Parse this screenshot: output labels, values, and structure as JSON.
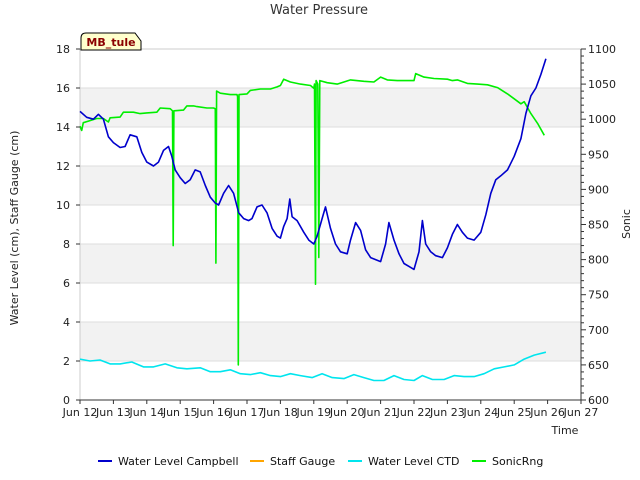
{
  "chart_data": {
    "type": "line",
    "title": "Water Pressure",
    "xlabel": "Time",
    "ylabel_left": "Water Level (cm), Staff Gauge (cm)",
    "ylabel_right": "Sonic",
    "badge": "MB_tule",
    "x_ticks": [
      "Jun 12",
      "Jun 13",
      "Jun 14",
      "Jun 15",
      "Jun 16",
      "Jun 17",
      "Jun 18",
      "Jun 19",
      "Jun 20",
      "Jun 21",
      "Jun 22",
      "Jun 23",
      "Jun 24",
      "Jun 25",
      "Jun 26",
      "Jun 27"
    ],
    "x_tick_days": [
      12,
      13,
      14,
      15,
      16,
      17,
      18,
      19,
      20,
      21,
      22,
      23,
      24,
      25,
      26,
      27
    ],
    "x_range_days": [
      12,
      27
    ],
    "left_range": [
      0,
      18
    ],
    "left_ticks": [
      0,
      2,
      4,
      6,
      8,
      10,
      12,
      14,
      16,
      18
    ],
    "right_range": [
      600,
      1100
    ],
    "right_ticks": [
      600,
      650,
      700,
      750,
      800,
      850,
      900,
      950,
      1000,
      1050,
      1100
    ],
    "grid": "horizontal alternating bands",
    "legend_position": "bottom",
    "series": [
      {
        "name": "Water Level Campbell",
        "color": "#0000cc",
        "axis": "left",
        "points": [
          [
            12.0,
            14.8
          ],
          [
            12.2,
            14.5
          ],
          [
            12.4,
            14.4
          ],
          [
            12.55,
            14.65
          ],
          [
            12.7,
            14.4
          ],
          [
            12.85,
            13.5
          ],
          [
            13.0,
            13.2
          ],
          [
            13.2,
            12.95
          ],
          [
            13.35,
            13.0
          ],
          [
            13.5,
            13.6
          ],
          [
            13.7,
            13.5
          ],
          [
            13.85,
            12.7
          ],
          [
            14.0,
            12.2
          ],
          [
            14.2,
            12.0
          ],
          [
            14.35,
            12.2
          ],
          [
            14.5,
            12.8
          ],
          [
            14.65,
            13.0
          ],
          [
            14.75,
            12.5
          ],
          [
            14.85,
            11.8
          ],
          [
            15.0,
            11.4
          ],
          [
            15.15,
            11.1
          ],
          [
            15.3,
            11.3
          ],
          [
            15.45,
            11.8
          ],
          [
            15.6,
            11.7
          ],
          [
            15.75,
            11.0
          ],
          [
            15.9,
            10.4
          ],
          [
            16.05,
            10.1
          ],
          [
            16.15,
            10.0
          ],
          [
            16.3,
            10.6
          ],
          [
            16.45,
            11.0
          ],
          [
            16.6,
            10.6
          ],
          [
            16.75,
            9.6
          ],
          [
            16.9,
            9.3
          ],
          [
            17.05,
            9.2
          ],
          [
            17.15,
            9.3
          ],
          [
            17.3,
            9.9
          ],
          [
            17.45,
            10.0
          ],
          [
            17.6,
            9.6
          ],
          [
            17.75,
            8.8
          ],
          [
            17.9,
            8.4
          ],
          [
            18.0,
            8.3
          ],
          [
            18.1,
            8.9
          ],
          [
            18.2,
            9.3
          ],
          [
            18.28,
            10.3
          ],
          [
            18.35,
            9.4
          ],
          [
            18.5,
            9.2
          ],
          [
            18.7,
            8.6
          ],
          [
            18.85,
            8.2
          ],
          [
            19.0,
            8.0
          ],
          [
            19.1,
            8.4
          ],
          [
            19.25,
            9.3
          ],
          [
            19.35,
            9.9
          ],
          [
            19.5,
            8.8
          ],
          [
            19.65,
            8.0
          ],
          [
            19.8,
            7.6
          ],
          [
            20.0,
            7.5
          ],
          [
            20.1,
            8.2
          ],
          [
            20.25,
            9.1
          ],
          [
            20.4,
            8.7
          ],
          [
            20.55,
            7.7
          ],
          [
            20.7,
            7.3
          ],
          [
            20.85,
            7.2
          ],
          [
            21.0,
            7.1
          ],
          [
            21.15,
            8.0
          ],
          [
            21.25,
            9.1
          ],
          [
            21.4,
            8.2
          ],
          [
            21.55,
            7.5
          ],
          [
            21.7,
            7.0
          ],
          [
            21.85,
            6.85
          ],
          [
            22.0,
            6.7
          ],
          [
            22.15,
            7.6
          ],
          [
            22.25,
            9.2
          ],
          [
            22.35,
            8.0
          ],
          [
            22.5,
            7.6
          ],
          [
            22.65,
            7.4
          ],
          [
            22.85,
            7.3
          ],
          [
            23.0,
            7.8
          ],
          [
            23.15,
            8.5
          ],
          [
            23.3,
            9.0
          ],
          [
            23.45,
            8.6
          ],
          [
            23.6,
            8.3
          ],
          [
            23.8,
            8.2
          ],
          [
            24.0,
            8.6
          ],
          [
            24.15,
            9.5
          ],
          [
            24.3,
            10.6
          ],
          [
            24.45,
            11.3
          ],
          [
            24.6,
            11.5
          ],
          [
            24.8,
            11.8
          ],
          [
            25.0,
            12.5
          ],
          [
            25.2,
            13.4
          ],
          [
            25.35,
            14.7
          ],
          [
            25.5,
            15.6
          ],
          [
            25.65,
            16.0
          ],
          [
            25.8,
            16.7
          ],
          [
            25.95,
            17.5
          ]
        ]
      },
      {
        "name": "Staff Gauge",
        "color": "#ffa500",
        "axis": "left",
        "points": []
      },
      {
        "name": "Water Level CTD",
        "color": "#00e5ee",
        "axis": "left",
        "points": [
          [
            12.0,
            2.1
          ],
          [
            12.3,
            2.0
          ],
          [
            12.6,
            2.05
          ],
          [
            12.9,
            1.85
          ],
          [
            13.2,
            1.85
          ],
          [
            13.55,
            1.95
          ],
          [
            13.9,
            1.7
          ],
          [
            14.2,
            1.7
          ],
          [
            14.55,
            1.85
          ],
          [
            14.9,
            1.65
          ],
          [
            15.2,
            1.6
          ],
          [
            15.6,
            1.65
          ],
          [
            15.9,
            1.45
          ],
          [
            16.2,
            1.45
          ],
          [
            16.5,
            1.55
          ],
          [
            16.8,
            1.35
          ],
          [
            17.1,
            1.3
          ],
          [
            17.4,
            1.4
          ],
          [
            17.7,
            1.25
          ],
          [
            18.0,
            1.2
          ],
          [
            18.3,
            1.35
          ],
          [
            18.6,
            1.25
          ],
          [
            18.95,
            1.15
          ],
          [
            19.25,
            1.35
          ],
          [
            19.55,
            1.15
          ],
          [
            19.9,
            1.1
          ],
          [
            20.2,
            1.3
          ],
          [
            20.5,
            1.15
          ],
          [
            20.8,
            1.0
          ],
          [
            21.1,
            1.0
          ],
          [
            21.4,
            1.25
          ],
          [
            21.7,
            1.05
          ],
          [
            22.0,
            1.0
          ],
          [
            22.25,
            1.25
          ],
          [
            22.55,
            1.05
          ],
          [
            22.9,
            1.05
          ],
          [
            23.2,
            1.25
          ],
          [
            23.5,
            1.2
          ],
          [
            23.8,
            1.2
          ],
          [
            24.1,
            1.35
          ],
          [
            24.4,
            1.6
          ],
          [
            24.7,
            1.7
          ],
          [
            25.0,
            1.8
          ],
          [
            25.3,
            2.1
          ],
          [
            25.6,
            2.3
          ],
          [
            25.95,
            2.45
          ]
        ]
      },
      {
        "name": "SonicRng",
        "color": "#00ee00",
        "axis": "right",
        "points": [
          [
            12.0,
            990
          ],
          [
            12.05,
            984
          ],
          [
            12.1,
            995
          ],
          [
            12.3,
            998
          ],
          [
            12.5,
            1001
          ],
          [
            12.7,
            1001
          ],
          [
            12.85,
            996
          ],
          [
            12.9,
            1002
          ],
          [
            13.2,
            1003
          ],
          [
            13.3,
            1010
          ],
          [
            13.6,
            1010
          ],
          [
            13.8,
            1008
          ],
          [
            14.0,
            1009
          ],
          [
            14.3,
            1010
          ],
          [
            14.4,
            1016
          ],
          [
            14.7,
            1015
          ],
          [
            14.77,
            1012
          ],
          [
            14.79,
            820
          ],
          [
            14.81,
            1012
          ],
          [
            15.1,
            1013
          ],
          [
            15.2,
            1019
          ],
          [
            15.4,
            1019
          ],
          [
            15.5,
            1018
          ],
          [
            15.8,
            1016
          ],
          [
            16.0,
            1016
          ],
          [
            16.05,
            1015
          ],
          [
            16.07,
            795
          ],
          [
            16.09,
            1040
          ],
          [
            16.2,
            1037
          ],
          [
            16.5,
            1035
          ],
          [
            16.7,
            1035
          ],
          [
            16.72,
            1032
          ],
          [
            16.74,
            650
          ],
          [
            16.76,
            1035
          ],
          [
            17.0,
            1036
          ],
          [
            17.1,
            1041
          ],
          [
            17.4,
            1043
          ],
          [
            17.7,
            1043
          ],
          [
            17.9,
            1046
          ],
          [
            18.0,
            1048
          ],
          [
            18.1,
            1057
          ],
          [
            18.3,
            1053
          ],
          [
            18.6,
            1050
          ],
          [
            18.9,
            1048
          ],
          [
            19.0,
            1044
          ],
          [
            19.02,
            1050
          ],
          [
            19.05,
            765
          ],
          [
            19.07,
            1055
          ],
          [
            19.12,
            1050
          ],
          [
            19.15,
            803
          ],
          [
            19.18,
            1055
          ],
          [
            19.4,
            1052
          ],
          [
            19.7,
            1050
          ],
          [
            19.9,
            1053
          ],
          [
            20.1,
            1056
          ],
          [
            20.5,
            1054
          ],
          [
            20.8,
            1053
          ],
          [
            21.0,
            1060
          ],
          [
            21.2,
            1056
          ],
          [
            21.5,
            1055
          ],
          [
            21.8,
            1055
          ],
          [
            22.0,
            1055
          ],
          [
            22.05,
            1065
          ],
          [
            22.3,
            1060
          ],
          [
            22.6,
            1058
          ],
          [
            23.0,
            1057
          ],
          [
            23.15,
            1055
          ],
          [
            23.3,
            1056
          ],
          [
            23.6,
            1051
          ],
          [
            23.9,
            1050
          ],
          [
            24.2,
            1049
          ],
          [
            24.5,
            1045
          ],
          [
            24.8,
            1036
          ],
          [
            25.0,
            1029
          ],
          [
            25.2,
            1022
          ],
          [
            25.3,
            1025
          ],
          [
            25.5,
            1008
          ],
          [
            25.7,
            994
          ],
          [
            25.9,
            977
          ]
        ]
      }
    ]
  }
}
